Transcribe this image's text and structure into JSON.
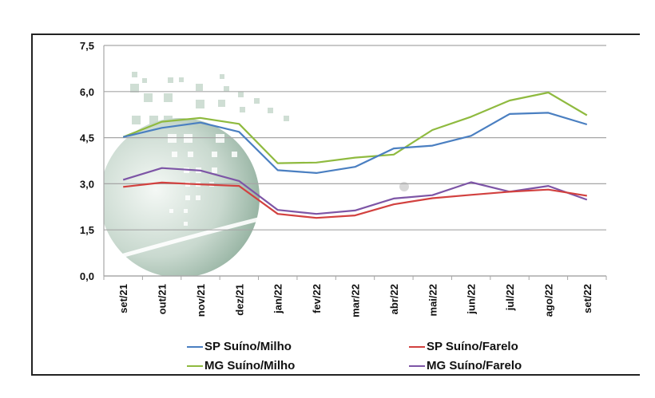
{
  "chart_data": {
    "type": "line",
    "title": "",
    "xlabel": "",
    "ylabel": "",
    "categories": [
      "set/21",
      "out/21",
      "nov/21",
      "dez/21",
      "jan/22",
      "fev/22",
      "mar/22",
      "abr/22",
      "mai/22",
      "jun/22",
      "jul/22",
      "ago/22",
      "set/22"
    ],
    "ylim": [
      0,
      7.5
    ],
    "yticks": [
      "0,0",
      "1,5",
      "3,0",
      "4,5",
      "6,0",
      "7,5"
    ],
    "ytick_values": [
      0,
      1.5,
      3.0,
      4.5,
      6.0,
      7.5
    ],
    "grid": true,
    "legend_position": "bottom",
    "series": [
      {
        "name": "SP Suíno/Milho",
        "color": "#4a7fc1",
        "values": [
          4.52,
          4.82,
          4.99,
          4.69,
          3.44,
          3.35,
          3.55,
          4.15,
          4.24,
          4.56,
          5.27,
          5.31,
          4.93
        ]
      },
      {
        "name": "SP Suíno/Farelo",
        "color": "#d2413f",
        "values": [
          2.9,
          3.04,
          2.98,
          2.93,
          2.02,
          1.89,
          1.97,
          2.33,
          2.53,
          2.64,
          2.74,
          2.81,
          2.61
        ]
      },
      {
        "name": "MG Suíno/Milho",
        "color": "#8fba3f",
        "values": [
          4.52,
          5.02,
          5.14,
          4.95,
          3.67,
          3.69,
          3.85,
          3.95,
          4.75,
          5.18,
          5.71,
          5.97,
          5.23
        ]
      },
      {
        "name": "MG Suíno/Farelo",
        "color": "#7d55a6",
        "values": [
          3.13,
          3.51,
          3.43,
          3.09,
          2.15,
          2.02,
          2.13,
          2.52,
          2.63,
          3.05,
          2.74,
          2.93,
          2.48
        ]
      }
    ]
  }
}
